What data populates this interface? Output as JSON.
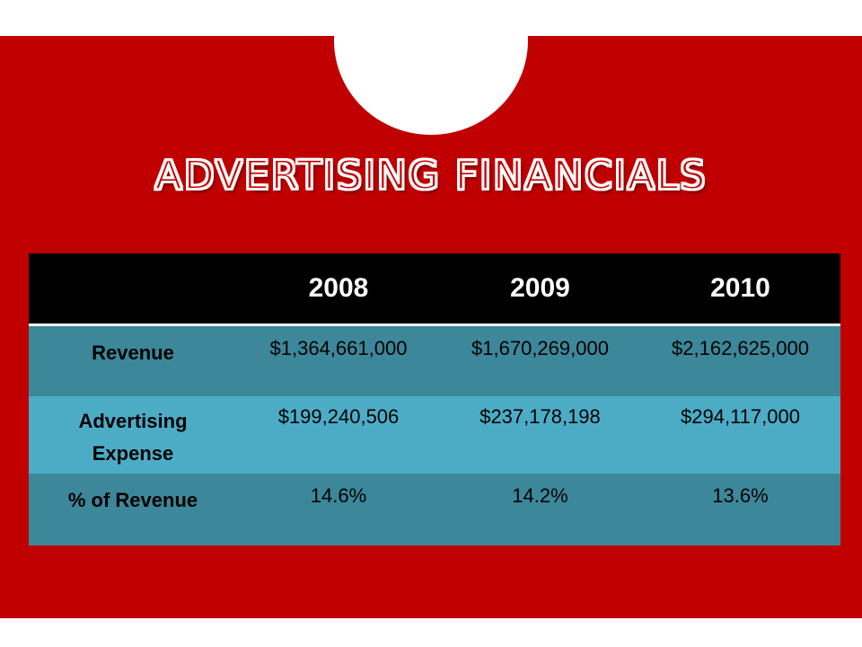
{
  "title": "ADVERTISING FINANCIALS",
  "table": {
    "columns": [
      "",
      "2008",
      "2009",
      "2010"
    ],
    "rows": [
      {
        "label": "Revenue",
        "values": [
          "$1,364,661,000",
          "$1,670,269,000",
          "$2,162,625,000"
        ]
      },
      {
        "label_line1": "Advertising",
        "label_line2": "Expense",
        "values": [
          "$199,240,506",
          "$237,178,198",
          "$294,117,000"
        ]
      },
      {
        "label": "% of Revenue",
        "values": [
          "14.6%",
          "14.2%",
          "13.6%"
        ]
      }
    ]
  },
  "colors": {
    "background_band": "#c00000",
    "header_row": "#000000",
    "row_dark": "#3c8799",
    "row_light": "#4cacc6",
    "title_fill": "#c00000",
    "title_outline": "#ffffff"
  }
}
